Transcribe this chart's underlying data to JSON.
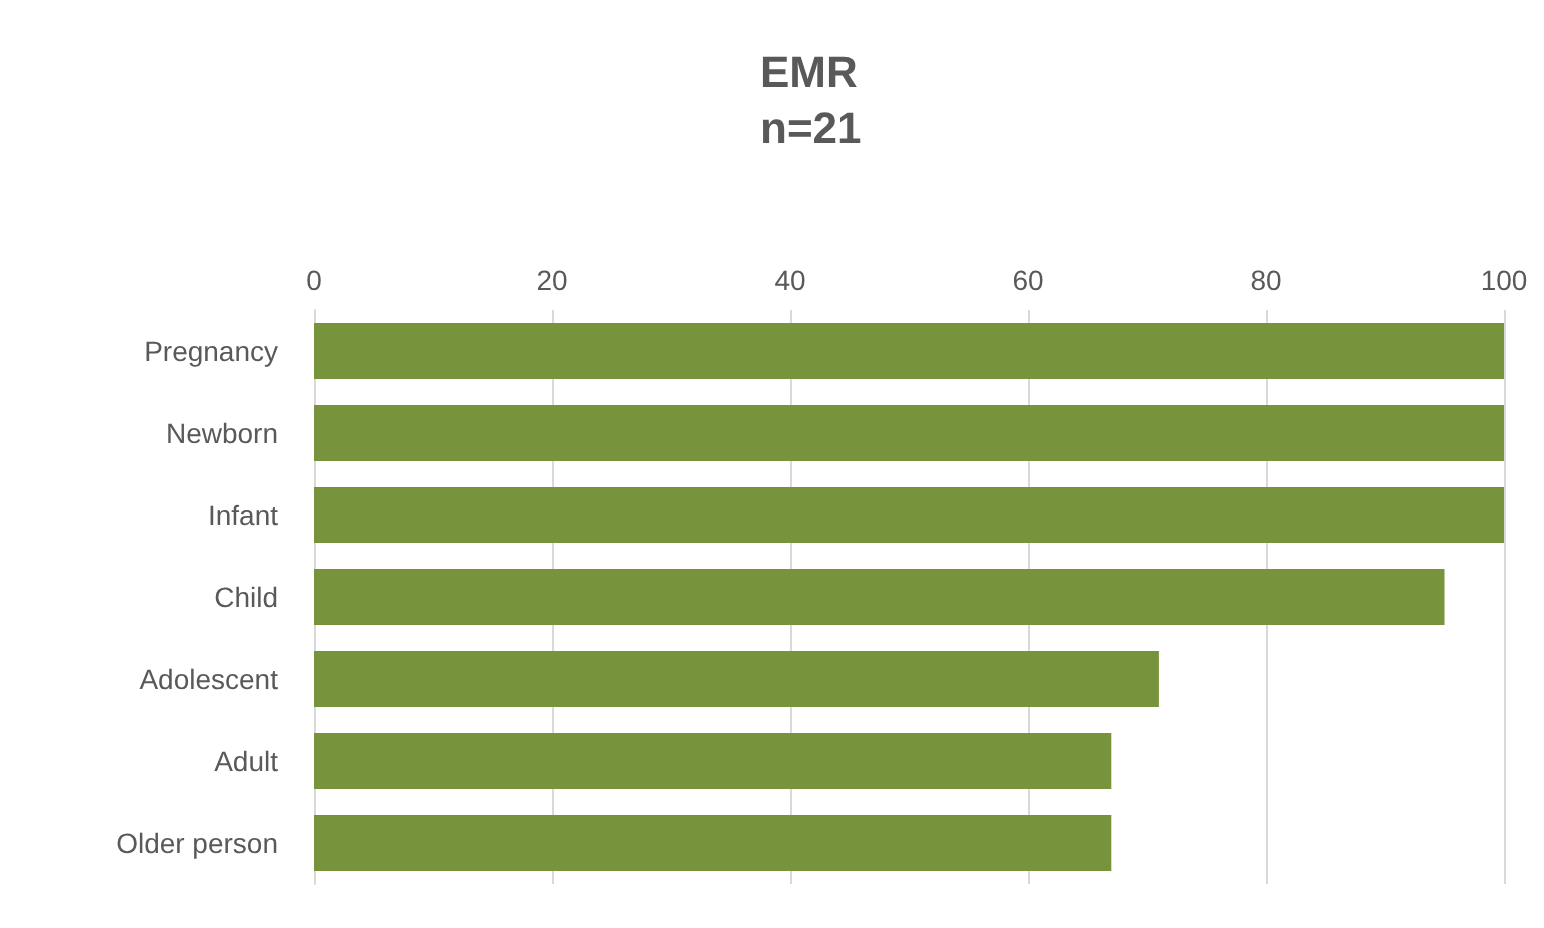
{
  "chart_data": {
    "type": "bar",
    "orientation": "horizontal",
    "title": "EMR",
    "subtitle": "n=21",
    "categories": [
      "Pregnancy",
      "Newborn",
      "Infant",
      "Child",
      "Adolescent",
      "Adult",
      "Older person"
    ],
    "values": [
      100,
      100,
      100,
      95,
      71,
      67,
      67
    ],
    "color": "#77933c",
    "xlim": [
      0,
      100
    ],
    "xticks": [
      0,
      20,
      40,
      60,
      80,
      100
    ],
    "grid": "x"
  }
}
